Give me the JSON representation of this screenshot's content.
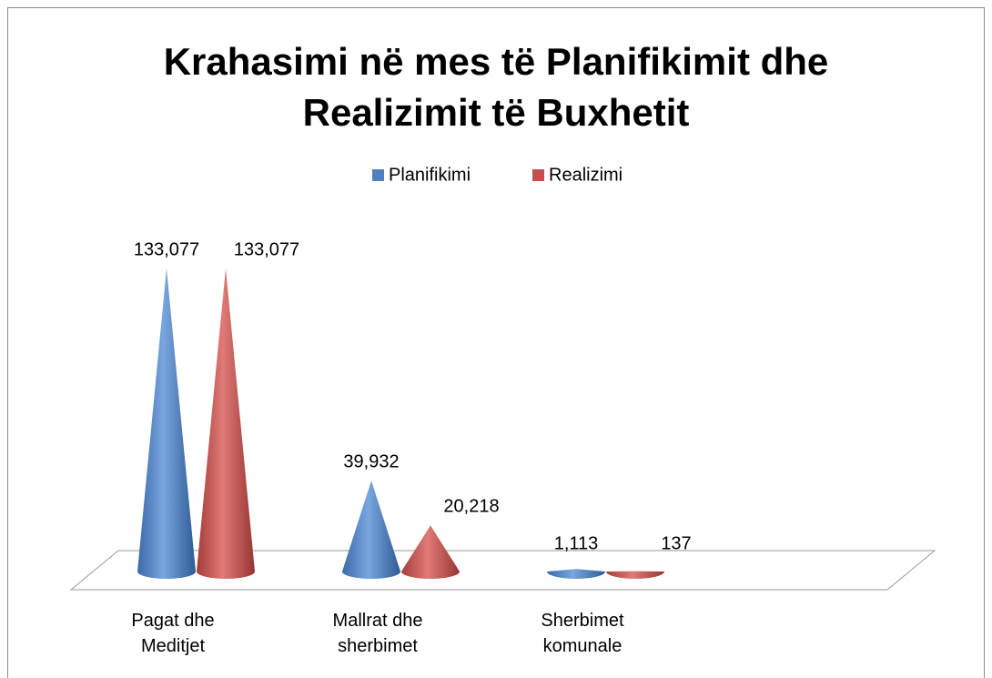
{
  "chart_data": {
    "type": "cone",
    "title": "Krahasimi në mes të Planifikimit dhe Realizimit të Buxhetit",
    "categories": [
      "Pagat dhe Meditjet",
      "Mallrat dhe sherbimet",
      "Sherbimet komunale"
    ],
    "series": [
      {
        "name": "Planifikimi",
        "color": "#4f81bd",
        "values": [
          133077,
          39932,
          1113
        ],
        "value_labels": [
          "133,077",
          "39,932",
          "1,113"
        ]
      },
      {
        "name": "Realizimi",
        "color": "#c0504d",
        "values": [
          133077,
          20218,
          137
        ],
        "value_labels": [
          "133,077",
          "20,218",
          "137"
        ]
      }
    ],
    "legend": "top"
  }
}
